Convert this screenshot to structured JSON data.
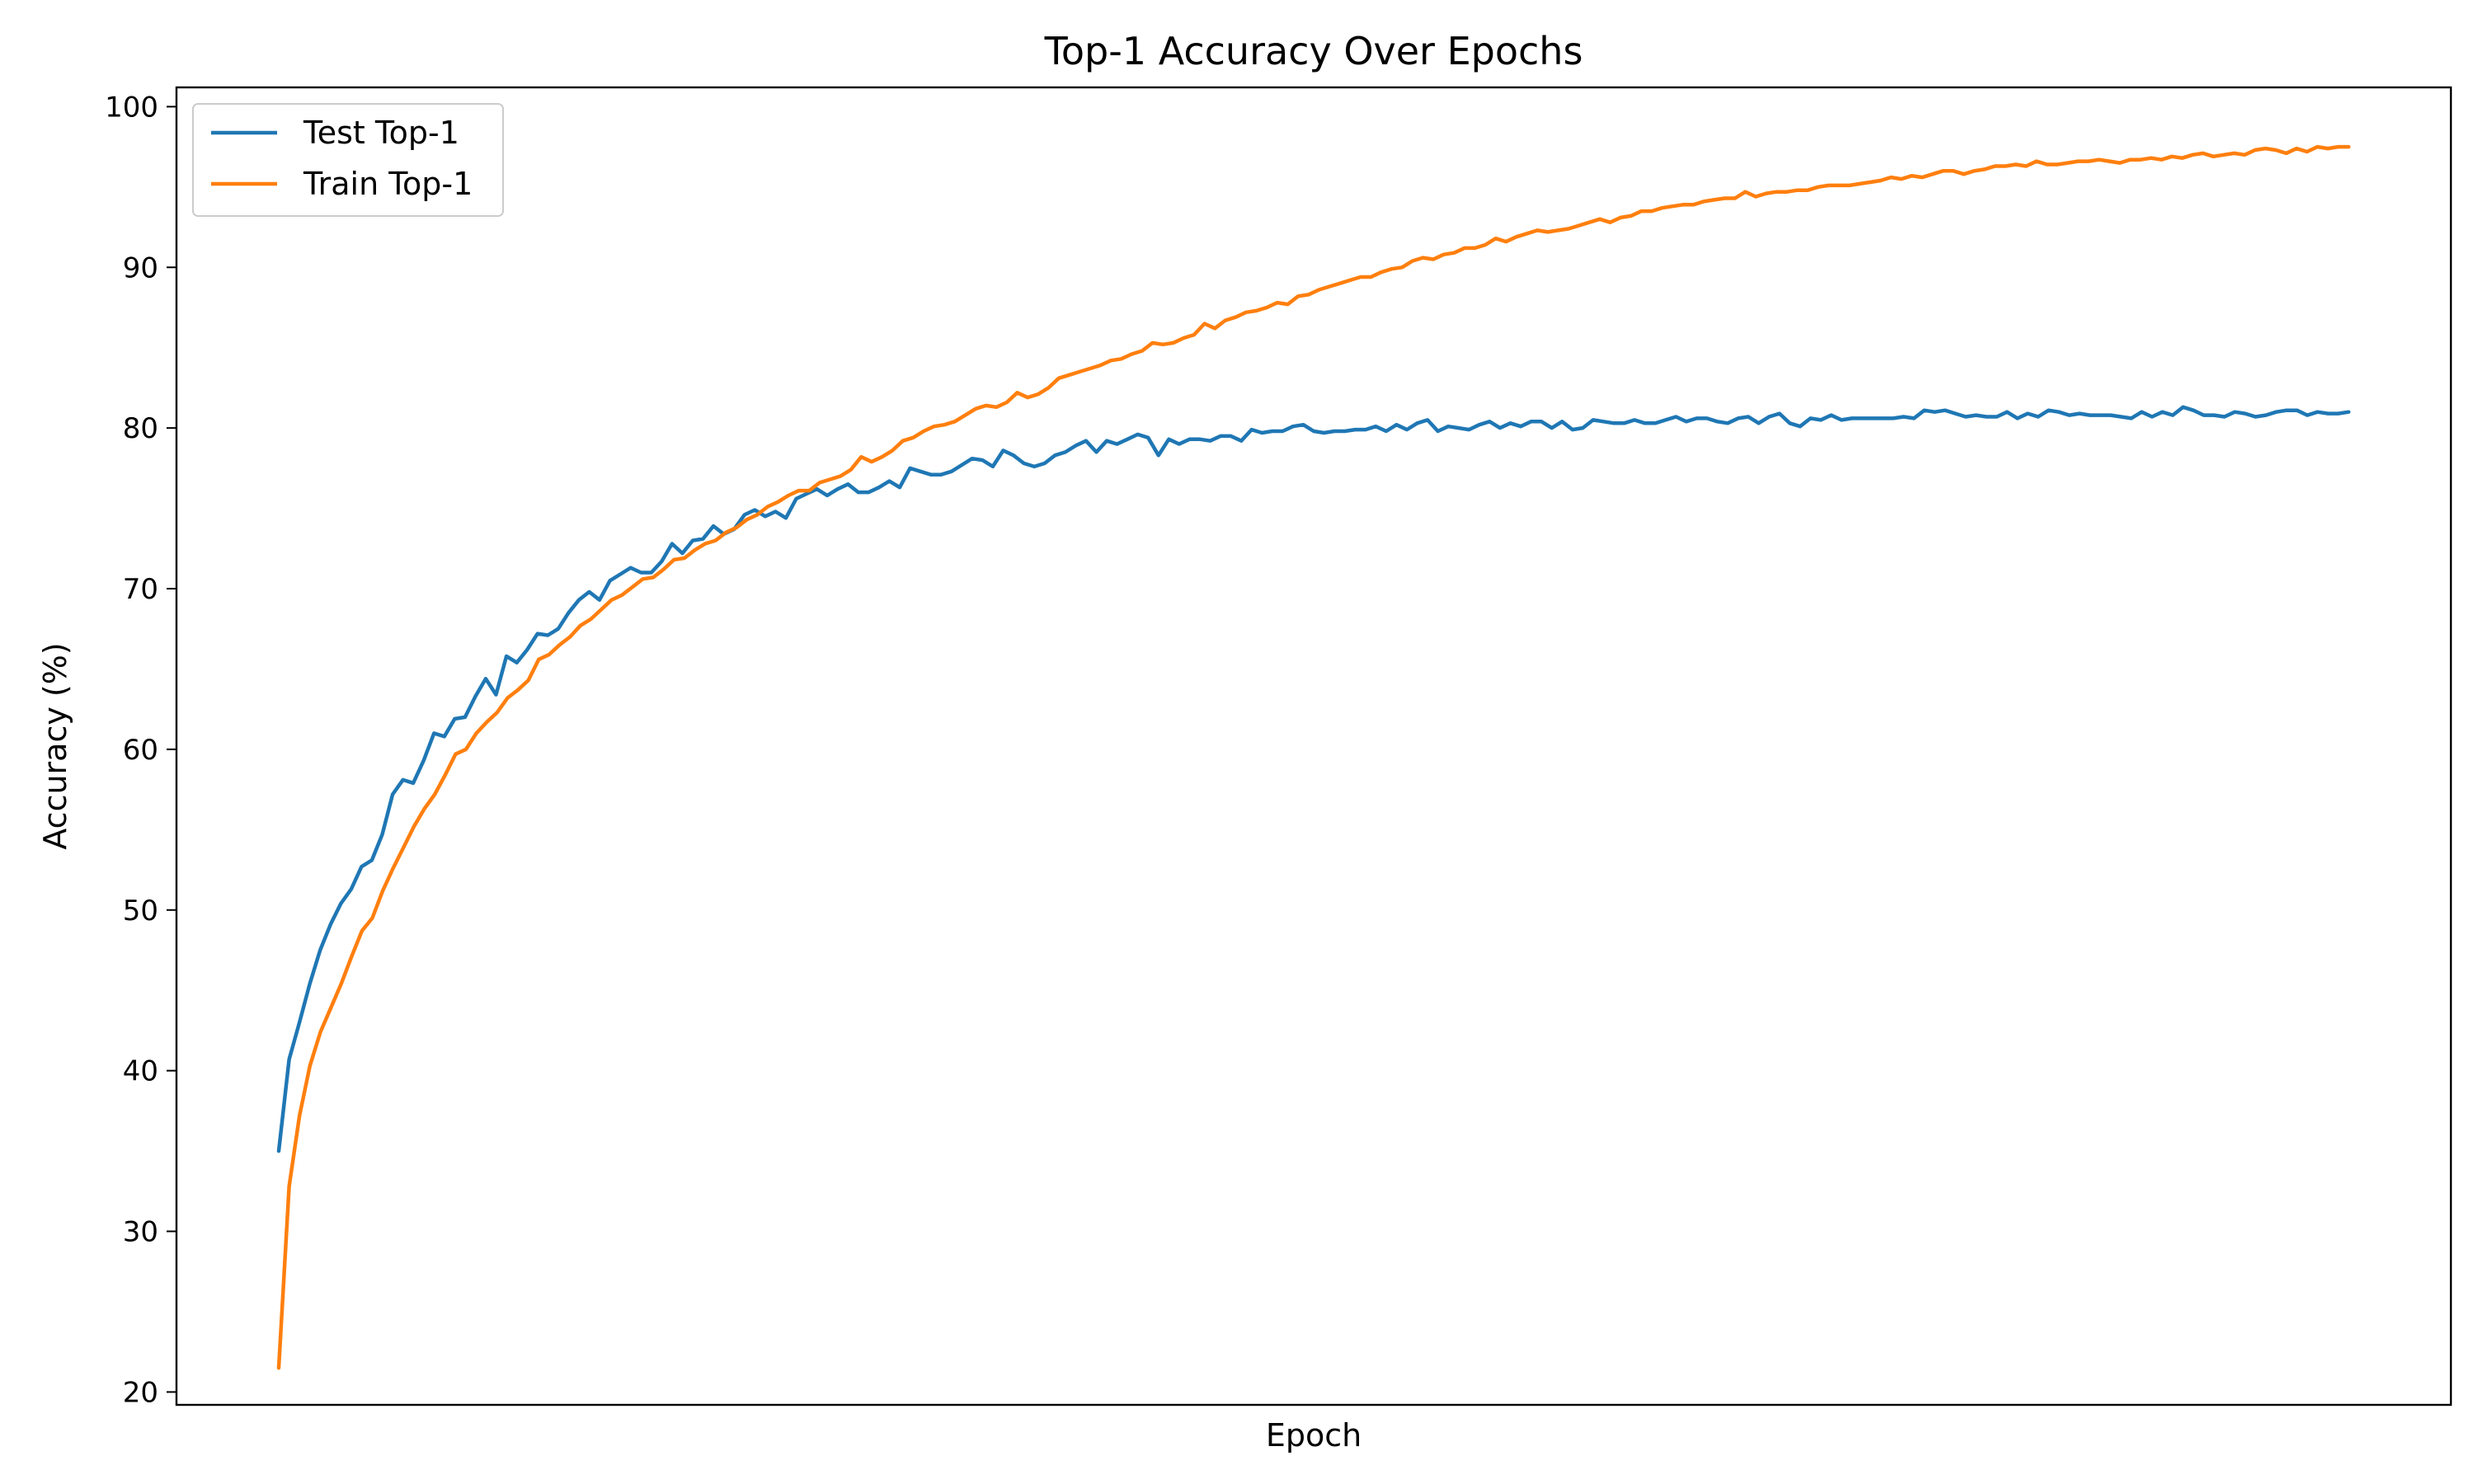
{
  "chart_data": {
    "type": "line",
    "title": "Top-1 Accuracy Over Epochs",
    "xlabel": "Epoch",
    "ylabel": "Accuracy (%)",
    "x_ticks_shown": false,
    "ylim": [
      19.2,
      101.2
    ],
    "y_ticks": [
      20,
      30,
      40,
      50,
      60,
      70,
      80,
      90,
      100
    ],
    "grid": false,
    "legend_position": "top-left",
    "series": [
      {
        "name": "Test Top-1",
        "color": "#1f77b4",
        "values": [
          35.0,
          40.7,
          43.0,
          45.4,
          47.5,
          49.1,
          50.4,
          51.3,
          52.7,
          53.1,
          54.7,
          57.2,
          58.1,
          57.9,
          59.3,
          61.0,
          60.8,
          61.9,
          62.0,
          63.3,
          64.4,
          63.4,
          65.8,
          65.4,
          66.2,
          67.2,
          67.1,
          67.5,
          68.5,
          69.3,
          69.8,
          69.3,
          70.5,
          70.9,
          71.3,
          71.0,
          71.0,
          71.7,
          72.8,
          72.2,
          73.0,
          73.1,
          73.9,
          73.4,
          73.7,
          74.6,
          74.9,
          74.5,
          74.8,
          74.4,
          75.6,
          75.9,
          76.2,
          75.8,
          76.2,
          76.5,
          76.0,
          76.0,
          76.3,
          76.7,
          76.3,
          77.5,
          77.3,
          77.1,
          77.1,
          77.3,
          77.7,
          78.1,
          78.0,
          77.6,
          78.6,
          78.3,
          77.8,
          77.6,
          77.8,
          78.3,
          78.5,
          78.9,
          79.2,
          78.5,
          79.2,
          79.0,
          79.3,
          79.6,
          79.4,
          78.3,
          79.3,
          79.0,
          79.3,
          79.3,
          79.2,
          79.5,
          79.5,
          79.2,
          79.9,
          79.7,
          79.8,
          79.8,
          80.1,
          80.2,
          79.8,
          79.7,
          79.8,
          79.8,
          79.9,
          79.9,
          80.1,
          79.8,
          80.2,
          79.9,
          80.3,
          80.5,
          79.8,
          80.1,
          80.0,
          79.9,
          80.2,
          80.4,
          80.0,
          80.3,
          80.1,
          80.4,
          80.4,
          80.0,
          80.4,
          79.9,
          80.0,
          80.5,
          80.4,
          80.3,
          80.3,
          80.5,
          80.3,
          80.3,
          80.5,
          80.7,
          80.4,
          80.6,
          80.6,
          80.4,
          80.3,
          80.6,
          80.7,
          80.3,
          80.7,
          80.9,
          80.3,
          80.1,
          80.6,
          80.5,
          80.8,
          80.5,
          80.6,
          80.6,
          80.6,
          80.6,
          80.6,
          80.7,
          80.6,
          81.1,
          81.0,
          81.1,
          80.9,
          80.7,
          80.8,
          80.7,
          80.7,
          81.0,
          80.6,
          80.9,
          80.7,
          81.1,
          81.0,
          80.8,
          80.9,
          80.8,
          80.8,
          80.8,
          80.7,
          80.6,
          81.0,
          80.7,
          81.0,
          80.8,
          81.3,
          81.1,
          80.8,
          80.8,
          80.7,
          81.0,
          80.9,
          80.7,
          80.8,
          81.0,
          81.1,
          81.1,
          80.8,
          81.0,
          80.9,
          80.9,
          81.0
        ]
      },
      {
        "name": "Train Top-1",
        "color": "#ff7f0e",
        "values": [
          21.5,
          32.8,
          37.2,
          40.3,
          42.4,
          43.9,
          45.4,
          47.1,
          48.7,
          49.5,
          51.2,
          52.6,
          53.9,
          55.2,
          56.3,
          57.2,
          58.4,
          59.7,
          60.0,
          61.0,
          61.7,
          62.3,
          63.2,
          63.7,
          64.3,
          65.6,
          65.9,
          66.5,
          67.0,
          67.7,
          68.1,
          68.7,
          69.3,
          69.6,
          70.1,
          70.6,
          70.7,
          71.2,
          71.8,
          71.9,
          72.4,
          72.8,
          73.0,
          73.5,
          73.8,
          74.3,
          74.6,
          75.1,
          75.4,
          75.8,
          76.1,
          76.1,
          76.6,
          76.8,
          77.0,
          77.4,
          78.2,
          77.9,
          78.2,
          78.6,
          79.2,
          79.4,
          79.8,
          80.1,
          80.2,
          80.4,
          80.8,
          81.2,
          81.4,
          81.3,
          81.6,
          82.2,
          81.9,
          82.1,
          82.5,
          83.1,
          83.3,
          83.5,
          83.7,
          83.9,
          84.2,
          84.3,
          84.6,
          84.8,
          85.3,
          85.2,
          85.3,
          85.6,
          85.8,
          86.5,
          86.2,
          86.7,
          86.9,
          87.2,
          87.3,
          87.5,
          87.8,
          87.7,
          88.2,
          88.3,
          88.6,
          88.8,
          89.0,
          89.2,
          89.4,
          89.4,
          89.7,
          89.9,
          90.0,
          90.4,
          90.6,
          90.5,
          90.8,
          90.9,
          91.2,
          91.2,
          91.4,
          91.8,
          91.6,
          91.9,
          92.1,
          92.3,
          92.2,
          92.3,
          92.4,
          92.6,
          92.8,
          93.0,
          92.8,
          93.1,
          93.2,
          93.5,
          93.5,
          93.7,
          93.8,
          93.9,
          93.9,
          94.1,
          94.2,
          94.3,
          94.3,
          94.7,
          94.4,
          94.6,
          94.7,
          94.7,
          94.8,
          94.8,
          95.0,
          95.1,
          95.1,
          95.1,
          95.2,
          95.3,
          95.4,
          95.6,
          95.5,
          95.7,
          95.6,
          95.8,
          96.0,
          96.0,
          95.8,
          96.0,
          96.1,
          96.3,
          96.3,
          96.4,
          96.3,
          96.6,
          96.4,
          96.4,
          96.5,
          96.6,
          96.6,
          96.7,
          96.6,
          96.5,
          96.7,
          96.7,
          96.8,
          96.7,
          96.9,
          96.8,
          97.0,
          97.1,
          96.9,
          97.0,
          97.1,
          97.0,
          97.3,
          97.4,
          97.3,
          97.1,
          97.4,
          97.2,
          97.5,
          97.4,
          97.5,
          97.5
        ]
      }
    ]
  }
}
